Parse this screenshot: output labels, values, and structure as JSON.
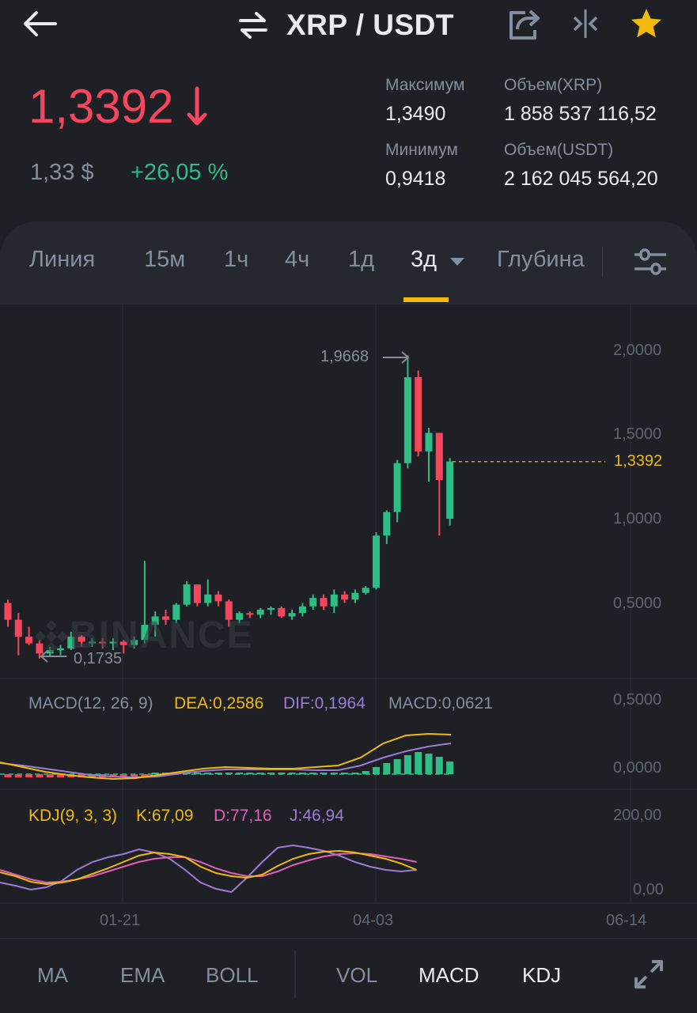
{
  "header": {
    "pair": "XRP / USDT"
  },
  "ticker": {
    "last_price": "1,3392",
    "usd_price": "1,33 $",
    "change": "+26,05 %",
    "stats": [
      {
        "label": "Максимум",
        "value": "1,3490"
      },
      {
        "label": "Объем(XRP)",
        "value": "1 858 537 116,52"
      },
      {
        "label": "Минимум",
        "value": "0,9418"
      },
      {
        "label": "Объем(USDT)",
        "value": "2 162 045 564,20"
      }
    ]
  },
  "tabs": [
    "Линия",
    "15м",
    "1ч",
    "4ч",
    "1д",
    "3д",
    "Глубина"
  ],
  "active_tab": "3д",
  "chart": {
    "y_axis": [
      "2,0000",
      "1,5000",
      "1,0000",
      "0,5000"
    ],
    "high_marker": "1,9668",
    "low_marker": "0,1735",
    "current_price_tag": "1,3392",
    "watermark": "BINANCE"
  },
  "macd": {
    "params": "MACD(12, 26, 9)",
    "dea": "DEA:0,2586",
    "dif": "DIF:0,1964",
    "macd": "MACD:0,0621",
    "y_axis": [
      "0,5000",
      "0,0000"
    ]
  },
  "kdj": {
    "params": "KDJ(9, 3, 3)",
    "k": "K:67,09",
    "d": "D:77,16",
    "j": "J:46,94",
    "y_axis": [
      "200,00",
      "0,00"
    ]
  },
  "x_axis": [
    "01-21",
    "04-03",
    "06-14"
  ],
  "bottom_buttons": [
    "MA",
    "EMA",
    "BOLL",
    "VOL",
    "MACD",
    "KDJ"
  ],
  "colors": {
    "up": "#2ebd85",
    "down": "#f6465d",
    "accent": "#f0b90b",
    "dea": "#f0b90b",
    "dif": "#9b7cd6",
    "k": "#f0b90b",
    "d": "#e05fb8",
    "j": "#9b7cd6"
  },
  "chart_data": {
    "type": "candlestick",
    "y_axis_ticks": [
      0.5,
      1.0,
      1.5,
      2.0
    ],
    "x_axis_ticks": [
      "01-21",
      "04-03",
      "06-14"
    ],
    "candles": [
      {
        "o": 0.5,
        "h": 0.52,
        "l": 0.36,
        "c": 0.4
      },
      {
        "o": 0.4,
        "h": 0.44,
        "l": 0.19,
        "c": 0.3
      },
      {
        "o": 0.3,
        "h": 0.36,
        "l": 0.25,
        "c": 0.26
      },
      {
        "o": 0.26,
        "h": 0.28,
        "l": 0.17,
        "c": 0.2
      },
      {
        "o": 0.2,
        "h": 0.24,
        "l": 0.18,
        "c": 0.22
      },
      {
        "o": 0.22,
        "h": 0.25,
        "l": 0.19,
        "c": 0.23
      },
      {
        "o": 0.23,
        "h": 0.33,
        "l": 0.22,
        "c": 0.3
      },
      {
        "o": 0.3,
        "h": 0.31,
        "l": 0.24,
        "c": 0.27
      },
      {
        "o": 0.27,
        "h": 0.29,
        "l": 0.24,
        "c": 0.27
      },
      {
        "o": 0.27,
        "h": 0.29,
        "l": 0.23,
        "c": 0.26
      },
      {
        "o": 0.26,
        "h": 0.29,
        "l": 0.22,
        "c": 0.27
      },
      {
        "o": 0.27,
        "h": 0.28,
        "l": 0.2,
        "c": 0.25
      },
      {
        "o": 0.25,
        "h": 0.3,
        "l": 0.23,
        "c": 0.28
      },
      {
        "o": 0.28,
        "h": 0.75,
        "l": 0.26,
        "c": 0.37
      },
      {
        "o": 0.37,
        "h": 0.45,
        "l": 0.3,
        "c": 0.42
      },
      {
        "o": 0.42,
        "h": 0.46,
        "l": 0.37,
        "c": 0.4
      },
      {
        "o": 0.4,
        "h": 0.5,
        "l": 0.38,
        "c": 0.49
      },
      {
        "o": 0.49,
        "h": 0.63,
        "l": 0.48,
        "c": 0.61
      },
      {
        "o": 0.61,
        "h": 0.61,
        "l": 0.48,
        "c": 0.5
      },
      {
        "o": 0.5,
        "h": 0.64,
        "l": 0.48,
        "c": 0.55
      },
      {
        "o": 0.55,
        "h": 0.57,
        "l": 0.48,
        "c": 0.51
      },
      {
        "o": 0.51,
        "h": 0.52,
        "l": 0.36,
        "c": 0.4
      },
      {
        "o": 0.4,
        "h": 0.45,
        "l": 0.38,
        "c": 0.44
      },
      {
        "o": 0.44,
        "h": 0.45,
        "l": 0.41,
        "c": 0.43
      },
      {
        "o": 0.43,
        "h": 0.47,
        "l": 0.41,
        "c": 0.46
      },
      {
        "o": 0.46,
        "h": 0.48,
        "l": 0.43,
        "c": 0.47
      },
      {
        "o": 0.47,
        "h": 0.48,
        "l": 0.41,
        "c": 0.42
      },
      {
        "o": 0.42,
        "h": 0.46,
        "l": 0.4,
        "c": 0.44
      },
      {
        "o": 0.44,
        "h": 0.5,
        "l": 0.42,
        "c": 0.48
      },
      {
        "o": 0.48,
        "h": 0.55,
        "l": 0.46,
        "c": 0.53
      },
      {
        "o": 0.53,
        "h": 0.55,
        "l": 0.46,
        "c": 0.48
      },
      {
        "o": 0.48,
        "h": 0.58,
        "l": 0.44,
        "c": 0.55
      },
      {
        "o": 0.55,
        "h": 0.57,
        "l": 0.5,
        "c": 0.52
      },
      {
        "o": 0.52,
        "h": 0.58,
        "l": 0.5,
        "c": 0.56
      },
      {
        "o": 0.56,
        "h": 0.6,
        "l": 0.55,
        "c": 0.59
      },
      {
        "o": 0.59,
        "h": 0.92,
        "l": 0.58,
        "c": 0.9
      },
      {
        "o": 0.9,
        "h": 1.05,
        "l": 0.85,
        "c": 1.04
      },
      {
        "o": 1.04,
        "h": 1.35,
        "l": 0.98,
        "c": 1.33
      },
      {
        "o": 1.33,
        "h": 1.97,
        "l": 1.3,
        "c": 1.84
      },
      {
        "o": 1.84,
        "h": 1.88,
        "l": 1.37,
        "c": 1.4
      },
      {
        "o": 1.4,
        "h": 1.54,
        "l": 1.22,
        "c": 1.51
      },
      {
        "o": 1.51,
        "h": 1.51,
        "l": 0.9,
        "c": 1.23
      },
      {
        "o": 1.0,
        "h": 1.36,
        "l": 0.96,
        "c": 1.34
      }
    ],
    "high_label": 1.9668,
    "low_label": 0.1735,
    "last_price": 1.3392
  }
}
